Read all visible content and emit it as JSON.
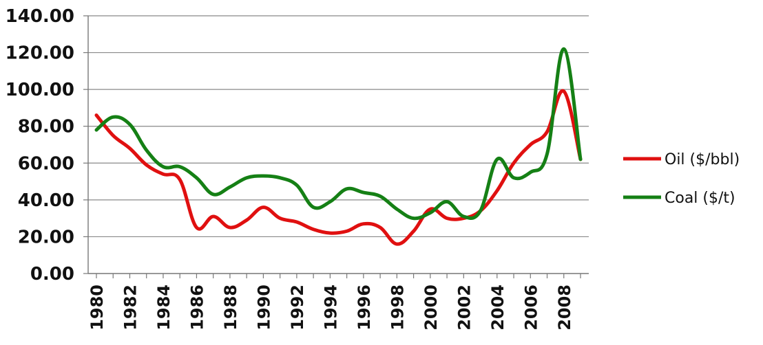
{
  "chart_data": {
    "type": "line",
    "title": "",
    "xlabel": "",
    "ylabel": "",
    "ylim": [
      0,
      140
    ],
    "yticks": [
      "0.00",
      "20.00",
      "40.00",
      "60.00",
      "80.00",
      "100.00",
      "120.00",
      "140.00"
    ],
    "x_tick_labels": [
      "1980",
      "1982",
      "1984",
      "1986",
      "1988",
      "1990",
      "1992",
      "1994",
      "1996",
      "1998",
      "2000",
      "2002",
      "2004",
      "2006",
      "2008"
    ],
    "x": [
      1980,
      1981,
      1982,
      1983,
      1984,
      1985,
      1986,
      1987,
      1988,
      1989,
      1990,
      1991,
      1992,
      1993,
      1994,
      1995,
      1996,
      1997,
      1998,
      1999,
      2000,
      2001,
      2002,
      2003,
      2004,
      2005,
      2006,
      2007,
      2008,
      2009
    ],
    "grid": true,
    "legend_position": "right",
    "series": [
      {
        "name": "Oil ($/bbl)",
        "color": "#e01010",
        "values": [
          86,
          75,
          68,
          59,
          54,
          51,
          25,
          31,
          25,
          29,
          36,
          30,
          28,
          24,
          22,
          23,
          27,
          25,
          16,
          23,
          35,
          30,
          30,
          34,
          45,
          60,
          70,
          77,
          99,
          62
        ]
      },
      {
        "name": "Coal ($/t)",
        "color": "#158015",
        "values": [
          78,
          85,
          81,
          67,
          58,
          58,
          52,
          43,
          47,
          52,
          53,
          52,
          48,
          36,
          39,
          46,
          44,
          42,
          35,
          30,
          33,
          39,
          31,
          34,
          62,
          52,
          55,
          65,
          122,
          62
        ]
      }
    ]
  }
}
